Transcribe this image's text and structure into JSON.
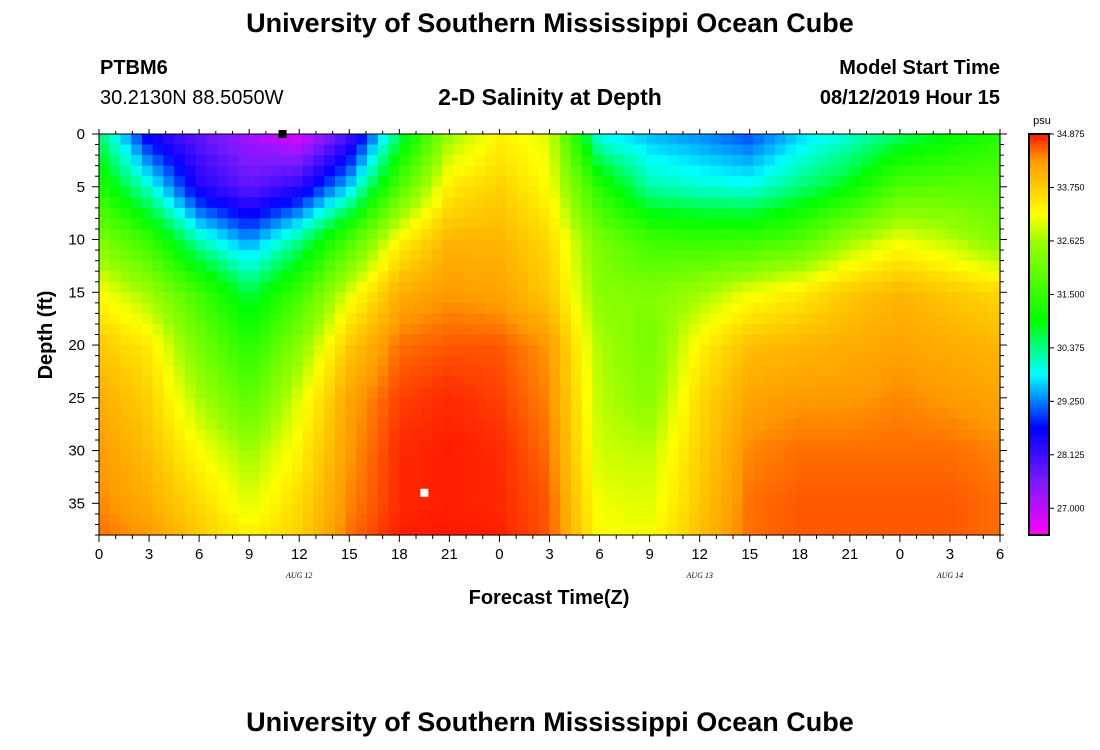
{
  "header": {
    "title": "University of Southern Mississippi Ocean Cube",
    "station_id": "PTBM6",
    "coordinates": "30.2130N 88.5050W",
    "subtitle": "2-D Salinity at Depth",
    "model_start_label": "Model Start Time",
    "model_start_value": "08/12/2019 Hour 15"
  },
  "footer": {
    "title": "University of Southern Mississippi Ocean Cube"
  },
  "chart_data": {
    "type": "heatmap",
    "title": "2-D Salinity at Depth",
    "xlabel": "Forecast Time(Z)",
    "ylabel": "Depth (ft)",
    "x_range_hours": [
      0,
      54
    ],
    "y_range_ft": [
      0,
      38
    ],
    "x_tick_labels": [
      "0",
      "3",
      "6",
      "9",
      "12",
      "15",
      "18",
      "21",
      "0",
      "3",
      "6",
      "9",
      "12",
      "15",
      "18",
      "21",
      "0",
      "3",
      "6"
    ],
    "y_tick_labels": [
      "0",
      "5",
      "10",
      "15",
      "20",
      "25",
      "30",
      "35"
    ],
    "y_tick_values": [
      0,
      5,
      10,
      15,
      20,
      25,
      30,
      35
    ],
    "date_labels": [
      {
        "text": "AUG 12",
        "hour": 12
      },
      {
        "text": "AUG 13",
        "hour": 36
      },
      {
        "text": "AUG 14",
        "hour": 51
      }
    ],
    "colorbar": {
      "unit": "psu",
      "min": 26.4375,
      "max": 34.875,
      "tick_labels": [
        "34.875",
        "33.750",
        "32.625",
        "31.500",
        "30.375",
        "29.250",
        "28.125",
        "27.000"
      ],
      "tick_values": [
        34.875,
        33.75,
        32.625,
        31.5,
        30.375,
        29.25,
        28.125,
        27.0
      ],
      "stops": [
        {
          "value": 26.4375,
          "color": "#ff00ff"
        },
        {
          "value": 27.5625,
          "color": "#7a1aff"
        },
        {
          "value": 28.6875,
          "color": "#0000ff"
        },
        {
          "value": 29.8125,
          "color": "#00ffff"
        },
        {
          "value": 30.9375,
          "color": "#00ff00"
        },
        {
          "value": 32.625,
          "color": "#9cff00"
        },
        {
          "value": 33.1875,
          "color": "#ffff00"
        },
        {
          "value": 34.3125,
          "color": "#ff9a00"
        },
        {
          "value": 34.875,
          "color": "#ff1800"
        }
      ]
    },
    "salinity_grid": {
      "time_hours": [
        0,
        3,
        6,
        9,
        12,
        15,
        18,
        21,
        24,
        27,
        30,
        33,
        36,
        39,
        42,
        45,
        48,
        51,
        54
      ],
      "depth_ft": [
        0,
        5,
        10,
        15,
        20,
        25,
        30,
        35,
        38
      ],
      "values_psu": [
        [
          30.5,
          28.5,
          27.8,
          27.2,
          26.7,
          28.0,
          30.5,
          32.6,
          33.3,
          33.0,
          29.8,
          29.5,
          29.3,
          29.0,
          29.6,
          30.0,
          30.5,
          30.9,
          31.3
        ],
        [
          31.3,
          30.0,
          28.4,
          27.8,
          28.3,
          29.6,
          31.8,
          33.4,
          33.7,
          33.2,
          31.3,
          30.2,
          30.0,
          29.9,
          30.4,
          30.9,
          31.8,
          31.9,
          31.9
        ],
        [
          32.3,
          31.5,
          30.1,
          29.3,
          30.3,
          31.7,
          33.3,
          34.0,
          34.0,
          33.6,
          32.2,
          31.6,
          31.5,
          31.5,
          31.8,
          32.6,
          33.1,
          32.8,
          32.3
        ],
        [
          33.2,
          32.6,
          31.6,
          30.6,
          31.6,
          33.0,
          34.1,
          34.3,
          34.2,
          33.8,
          32.4,
          32.3,
          32.6,
          33.1,
          33.4,
          33.8,
          34.0,
          33.8,
          33.6
        ],
        [
          33.8,
          33.4,
          32.2,
          31.3,
          32.4,
          33.8,
          34.5,
          34.6,
          34.6,
          34.3,
          32.7,
          32.2,
          33.3,
          33.9,
          34.0,
          34.1,
          34.2,
          34.1,
          34.0
        ],
        [
          34.1,
          33.7,
          32.7,
          31.9,
          33.0,
          34.2,
          34.7,
          34.8,
          34.7,
          34.4,
          32.8,
          32.4,
          33.6,
          34.2,
          34.3,
          34.3,
          34.4,
          34.3,
          34.2
        ],
        [
          34.3,
          33.9,
          33.2,
          32.6,
          33.3,
          34.3,
          34.8,
          34.85,
          34.8,
          34.5,
          32.9,
          32.8,
          33.7,
          34.4,
          34.5,
          34.5,
          34.5,
          34.5,
          34.4
        ],
        [
          34.4,
          34.1,
          33.6,
          33.0,
          33.6,
          34.4,
          34.8,
          34.85,
          34.8,
          34.6,
          33.1,
          33.0,
          33.8,
          34.5,
          34.6,
          34.6,
          34.6,
          34.6,
          34.5
        ],
        [
          34.5,
          34.3,
          33.8,
          33.3,
          33.7,
          34.5,
          34.85,
          34.87,
          34.85,
          34.6,
          33.2,
          33.1,
          33.9,
          34.5,
          34.6,
          34.6,
          34.6,
          34.6,
          34.5
        ]
      ]
    },
    "markers": [
      {
        "hour": 11,
        "depth_ft": 0,
        "color": "#000000"
      },
      {
        "hour": 19.5,
        "depth_ft": 34,
        "color": "#ffffff"
      }
    ]
  }
}
